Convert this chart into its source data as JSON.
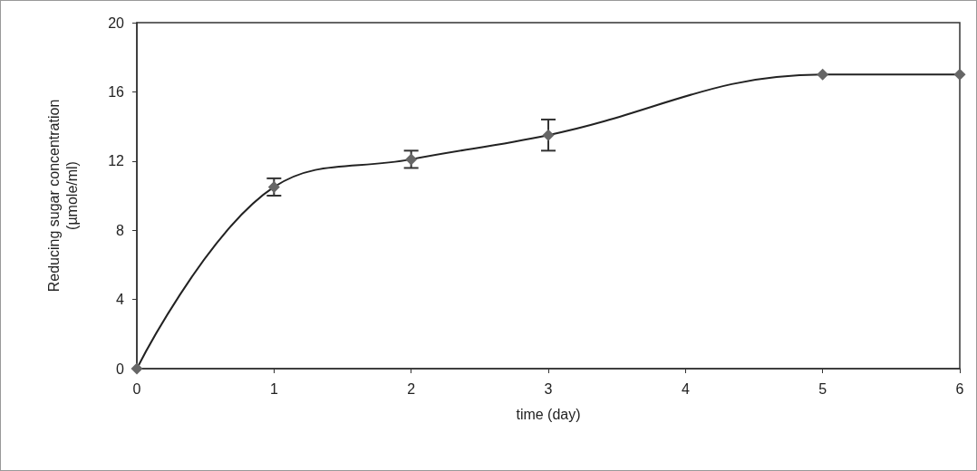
{
  "chart_data": {
    "type": "line",
    "xlabel": "time (day)",
    "ylabel": "Reducing sugar concentration (µmole/ml)",
    "x": [
      0,
      1,
      2,
      3,
      5,
      6
    ],
    "series": [
      {
        "color": "#666666",
        "values": [
          0,
          10.5,
          12.1,
          13.5,
          17.0,
          17.0
        ],
        "errors": [
          null,
          0.5,
          0.5,
          0.9,
          null,
          null
        ]
      }
    ],
    "xlim": [
      0,
      6
    ],
    "xticks": [
      0,
      1,
      2,
      3,
      4,
      5,
      6
    ],
    "ylim": [
      0,
      20
    ],
    "yticks": [
      0,
      4,
      8,
      12,
      16,
      20
    ],
    "grid": false,
    "marker": "diamond",
    "line_style": "solid"
  }
}
